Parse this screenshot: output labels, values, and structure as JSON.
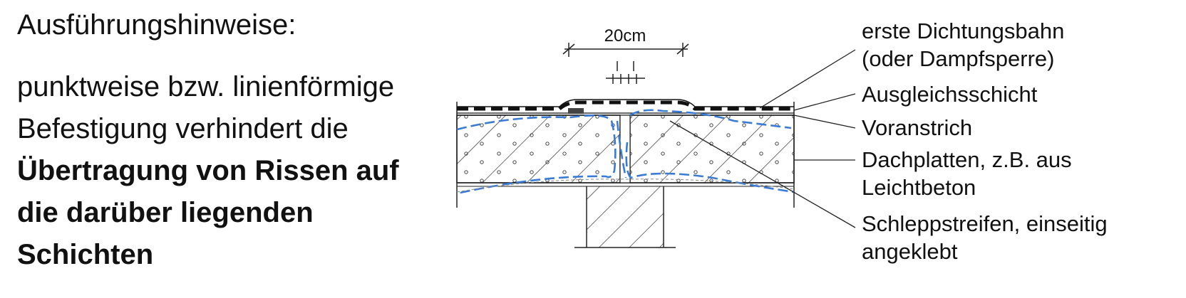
{
  "heading": "Ausführungshinweise:",
  "body_normal": [
    "punktweise bzw. linienförmige",
    "Befestigung verhindert die"
  ],
  "body_bold": [
    "Übertragung von Rissen auf",
    "die darüber liegenden",
    "Schichten"
  ],
  "diagram": {
    "dimension": "20cm",
    "crack_line_color": "#3a7bd5",
    "labels": [
      "erste Dichtungsbahn",
      "(oder Dampfsperre)",
      "Ausgleichsschicht",
      "Voranstrich",
      "Dachplatten, z.B. aus",
      "Leichtbeton",
      "Schleppstreifen, einseitig",
      "angeklebt"
    ]
  }
}
